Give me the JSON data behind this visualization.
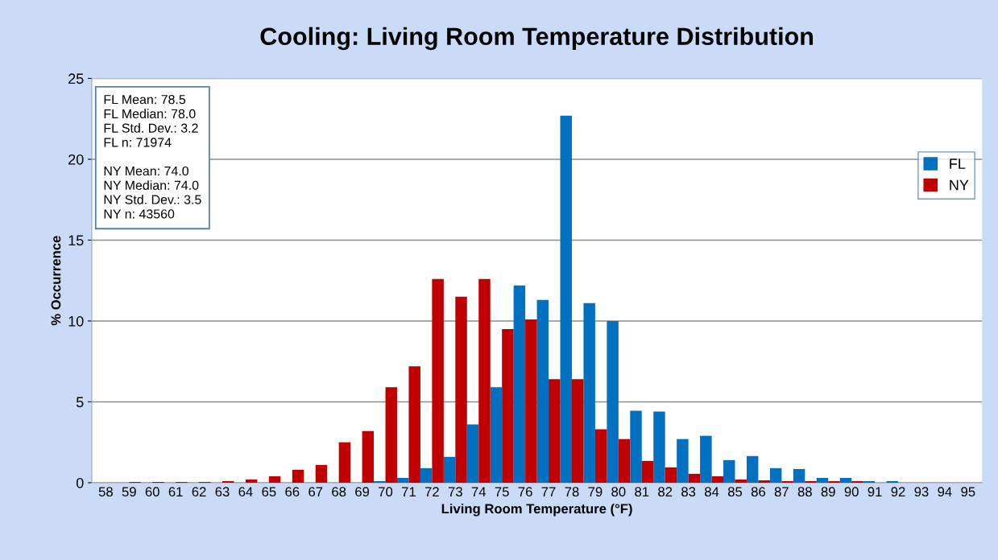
{
  "chart_data": {
    "type": "bar",
    "title": "Cooling: Living Room Temperature Distribution",
    "xlabel": "Living Room Temperature (°F)",
    "ylabel": "% Occurrence",
    "categories": [
      "58",
      "59",
      "60",
      "61",
      "62",
      "63",
      "64",
      "65",
      "66",
      "67",
      "68",
      "69",
      "70",
      "71",
      "72",
      "73",
      "74",
      "75",
      "76",
      "77",
      "78",
      "79",
      "80",
      "81",
      "82",
      "83",
      "84",
      "85",
      "86",
      "87",
      "88",
      "89",
      "90",
      "91",
      "92",
      "93",
      "94",
      "95"
    ],
    "series": [
      {
        "name": "FL",
        "color": "#0070c0",
        "values": [
          0,
          0,
          0,
          0,
          0,
          0,
          0,
          0,
          0,
          0,
          0,
          0,
          0.1,
          0.3,
          0.9,
          1.6,
          3.6,
          5.9,
          12.2,
          11.3,
          22.7,
          11.1,
          10.0,
          4.45,
          4.4,
          2.7,
          2.9,
          1.4,
          1.65,
          0.9,
          0.85,
          0.3,
          0.3,
          0.1,
          0.1,
          0,
          0,
          0
        ]
      },
      {
        "name": "NY",
        "color": "#c00000",
        "values": [
          0,
          0.05,
          0.05,
          0.05,
          0.05,
          0.1,
          0.2,
          0.4,
          0.8,
          1.1,
          2.5,
          3.2,
          5.9,
          7.2,
          12.6,
          11.5,
          12.6,
          9.5,
          10.1,
          6.4,
          6.4,
          3.3,
          2.7,
          1.35,
          0.95,
          0.55,
          0.4,
          0.2,
          0.15,
          0.1,
          0.1,
          0.1,
          0.1,
          0,
          0,
          0,
          0,
          0
        ]
      }
    ],
    "ylim": [
      0,
      25
    ],
    "yticks": [
      0,
      5,
      10,
      15,
      20,
      25
    ],
    "grid": "y",
    "legend": "right",
    "annotations": [
      "FL Mean: 78.5\nFL Median: 78.0\nFL Std. Dev.: 3.2\nFL n: 71974\n\nNY Mean: 74.0\nNY Median: 74.0\nNY Std. Dev.: 3.5\nNY n: 43560"
    ]
  }
}
